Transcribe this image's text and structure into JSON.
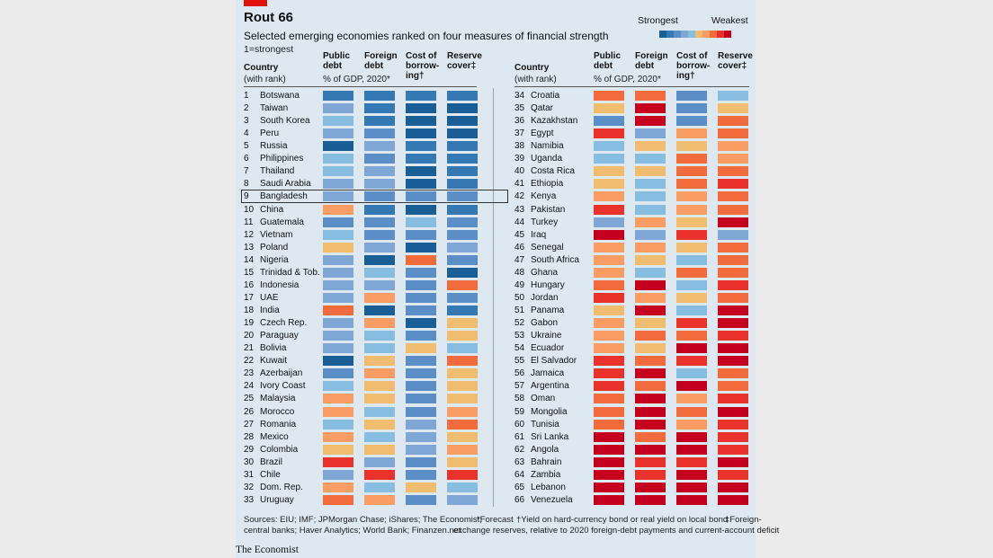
{
  "header": {
    "title": "Rout 66",
    "subtitle": "Selected emerging economies ranked on four measures of financial strength",
    "note": "1=strongest",
    "scale_strongest": "Strongest",
    "scale_weakest": "Weakest"
  },
  "footer": {
    "sources_line1": "Sources: EIU; IMF; JPMorgan Chase; iShares; The Economist;",
    "sources_line2": "central banks; Haver Analytics; World Bank; Finanzen.net",
    "forecast_note": "*Forecast",
    "borrowing_note_line1": "†Yield on hard-currency bond or real yield on local bond",
    "borrowing_note_line2": "exchange reserves, relative to 2020 foreign-debt payments and current-account deficit",
    "reserve_note": "‡Foreign-",
    "brand": "The Economist"
  },
  "colors": {
    "accent_red": "#e3120b",
    "panel_bg": "#dde8f1",
    "scale": [
      "#1a5e98",
      "#3579b4",
      "#5b8ec7",
      "#7ea7d6",
      "#86bde0",
      "#f0bc70",
      "#f99d64",
      "#f26b3c",
      "#e9322b",
      "#c4001e"
    ]
  },
  "chart_data": {
    "type": "table",
    "title": "Rout 66",
    "subtitle": "Selected emerging economies ranked on four measures of financial strength",
    "note": "1=strongest",
    "scale": "1 = strongest ... 10 = weakest",
    "columns": [
      {
        "key": "public_debt",
        "label": "Public\ndebt",
        "unit": ""
      },
      {
        "key": "foreign_debt",
        "label": "Foreign\ndebt",
        "unit": ""
      },
      {
        "key": "cost_of_borrowing",
        "label": "Cost of\nborrow-\ning†",
        "unit": ""
      },
      {
        "key": "reserve_cover",
        "label": "Reserve\ncover‡",
        "unit": ""
      }
    ],
    "country_header": "Country",
    "country_subheader": "(with rank)",
    "measure_subheader": "% of GDP, 2020*",
    "highlight_rank": 9,
    "rows": [
      {
        "rank": 1,
        "country": "Botswana",
        "values": [
          2,
          2,
          2,
          2
        ]
      },
      {
        "rank": 2,
        "country": "Taiwan",
        "values": [
          4,
          2,
          1,
          1
        ]
      },
      {
        "rank": 3,
        "country": "South Korea",
        "values": [
          5,
          2,
          1,
          1
        ]
      },
      {
        "rank": 4,
        "country": "Peru",
        "values": [
          4,
          3,
          1,
          1
        ]
      },
      {
        "rank": 5,
        "country": "Russia",
        "values": [
          1,
          4,
          2,
          2
        ]
      },
      {
        "rank": 6,
        "country": "Philippines",
        "values": [
          5,
          3,
          2,
          2
        ]
      },
      {
        "rank": 7,
        "country": "Thailand",
        "values": [
          5,
          4,
          1,
          2
        ]
      },
      {
        "rank": 8,
        "country": "Saudi Arabia",
        "values": [
          4,
          4,
          1,
          2
        ]
      },
      {
        "rank": 9,
        "country": "Bangladesh",
        "values": [
          4,
          3,
          3,
          3
        ]
      },
      {
        "rank": 10,
        "country": "China",
        "values": [
          7,
          2,
          1,
          2
        ]
      },
      {
        "rank": 11,
        "country": "Guatemala",
        "values": [
          3,
          3,
          5,
          3
        ]
      },
      {
        "rank": 12,
        "country": "Vietnam",
        "values": [
          5,
          3,
          3,
          3
        ]
      },
      {
        "rank": 13,
        "country": "Poland",
        "values": [
          6,
          4,
          1,
          4
        ]
      },
      {
        "rank": 14,
        "country": "Nigeria",
        "values": [
          4,
          1,
          8,
          3
        ]
      },
      {
        "rank": 15,
        "country": "Trinidad & Tob.",
        "values": [
          4,
          5,
          3,
          1
        ]
      },
      {
        "rank": 16,
        "country": "Indonesia",
        "values": [
          4,
          4,
          3,
          8
        ]
      },
      {
        "rank": 17,
        "country": "UAE",
        "values": [
          4,
          7,
          3,
          3
        ]
      },
      {
        "rank": 18,
        "country": "India",
        "values": [
          8,
          1,
          3,
          2
        ]
      },
      {
        "rank": 19,
        "country": "Czech Rep.",
        "values": [
          4,
          7,
          1,
          6
        ]
      },
      {
        "rank": 20,
        "country": "Paraguay",
        "values": [
          4,
          5,
          3,
          6
        ]
      },
      {
        "rank": 21,
        "country": "Bolivia",
        "values": [
          4,
          5,
          6,
          5
        ]
      },
      {
        "rank": 22,
        "country": "Kuwait",
        "values": [
          1,
          6,
          3,
          8
        ]
      },
      {
        "rank": 23,
        "country": "Azerbaijan",
        "values": [
          3,
          7,
          3,
          6
        ]
      },
      {
        "rank": 24,
        "country": "Ivory Coast",
        "values": [
          5,
          6,
          3,
          6
        ]
      },
      {
        "rank": 25,
        "country": "Malaysia",
        "values": [
          7,
          6,
          3,
          6
        ]
      },
      {
        "rank": 26,
        "country": "Morocco",
        "values": [
          7,
          5,
          3,
          7
        ]
      },
      {
        "rank": 27,
        "country": "Romania",
        "values": [
          5,
          6,
          4,
          8
        ]
      },
      {
        "rank": 28,
        "country": "Mexico",
        "values": [
          7,
          5,
          4,
          6
        ]
      },
      {
        "rank": 29,
        "country": "Colombia",
        "values": [
          6,
          6,
          4,
          7
        ]
      },
      {
        "rank": 30,
        "country": "Brazil",
        "values": [
          9,
          4,
          3,
          6
        ]
      },
      {
        "rank": 31,
        "country": "Chile",
        "values": [
          4,
          9,
          3,
          9
        ]
      },
      {
        "rank": 32,
        "country": "Dom. Rep.",
        "values": [
          7,
          5,
          6,
          5
        ]
      },
      {
        "rank": 33,
        "country": "Uruguay",
        "values": [
          8,
          7,
          3,
          4
        ]
      },
      {
        "rank": 34,
        "country": "Croatia",
        "values": [
          8,
          8,
          3,
          5
        ]
      },
      {
        "rank": 35,
        "country": "Qatar",
        "values": [
          6,
          10,
          3,
          6
        ]
      },
      {
        "rank": 36,
        "country": "Kazakhstan",
        "values": [
          3,
          10,
          3,
          8
        ]
      },
      {
        "rank": 37,
        "country": "Egypt",
        "values": [
          9,
          4,
          7,
          8
        ]
      },
      {
        "rank": 38,
        "country": "Namibia",
        "values": [
          5,
          6,
          6,
          7
        ]
      },
      {
        "rank": 39,
        "country": "Uganda",
        "values": [
          5,
          5,
          8,
          7
        ]
      },
      {
        "rank": 40,
        "country": "Costa Rica",
        "values": [
          6,
          6,
          8,
          8
        ]
      },
      {
        "rank": 41,
        "country": "Ethiopia",
        "values": [
          6,
          5,
          8,
          9
        ]
      },
      {
        "rank": 42,
        "country": "Kenya",
        "values": [
          7,
          5,
          7,
          8
        ]
      },
      {
        "rank": 43,
        "country": "Pakistan",
        "values": [
          9,
          5,
          7,
          8
        ]
      },
      {
        "rank": 44,
        "country": "Turkey",
        "values": [
          4,
          7,
          6,
          10
        ]
      },
      {
        "rank": 45,
        "country": "Iraq",
        "values": [
          10,
          4,
          9,
          4
        ]
      },
      {
        "rank": 46,
        "country": "Senegal",
        "values": [
          7,
          7,
          6,
          8
        ]
      },
      {
        "rank": 47,
        "country": "South Africa",
        "values": [
          7,
          6,
          5,
          8
        ]
      },
      {
        "rank": 48,
        "country": "Ghana",
        "values": [
          7,
          5,
          8,
          8
        ]
      },
      {
        "rank": 49,
        "country": "Hungary",
        "values": [
          8,
          10,
          5,
          9
        ]
      },
      {
        "rank": 50,
        "country": "Jordan",
        "values": [
          9,
          7,
          6,
          8
        ]
      },
      {
        "rank": 51,
        "country": "Panama",
        "values": [
          6,
          10,
          5,
          10
        ]
      },
      {
        "rank": 52,
        "country": "Gabon",
        "values": [
          7,
          6,
          9,
          10
        ]
      },
      {
        "rank": 53,
        "country": "Ukraine",
        "values": [
          7,
          8,
          8,
          9
        ]
      },
      {
        "rank": 54,
        "country": "Ecuador",
        "values": [
          7,
          6,
          10,
          10
        ]
      },
      {
        "rank": 55,
        "country": "El Salvador",
        "values": [
          9,
          8,
          9,
          10
        ]
      },
      {
        "rank": 56,
        "country": "Jamaica",
        "values": [
          9,
          10,
          5,
          8
        ]
      },
      {
        "rank": 57,
        "country": "Argentina",
        "values": [
          9,
          8,
          10,
          8
        ]
      },
      {
        "rank": 58,
        "country": "Oman",
        "values": [
          8,
          10,
          7,
          9
        ]
      },
      {
        "rank": 59,
        "country": "Mongolia",
        "values": [
          8,
          10,
          8,
          10
        ]
      },
      {
        "rank": 60,
        "country": "Tunisia",
        "values": [
          8,
          10,
          7,
          9
        ]
      },
      {
        "rank": 61,
        "country": "Sri Lanka",
        "values": [
          10,
          8,
          10,
          9
        ]
      },
      {
        "rank": 62,
        "country": "Angola",
        "values": [
          10,
          10,
          10,
          9
        ]
      },
      {
        "rank": 63,
        "country": "Bahrain",
        "values": [
          10,
          9,
          9,
          10
        ]
      },
      {
        "rank": 64,
        "country": "Zambia",
        "values": [
          10,
          9,
          10,
          9
        ]
      },
      {
        "rank": 65,
        "country": "Lebanon",
        "values": [
          10,
          10,
          10,
          10
        ]
      },
      {
        "rank": 66,
        "country": "Venezuela",
        "values": [
          10,
          10,
          10,
          10
        ]
      }
    ]
  }
}
